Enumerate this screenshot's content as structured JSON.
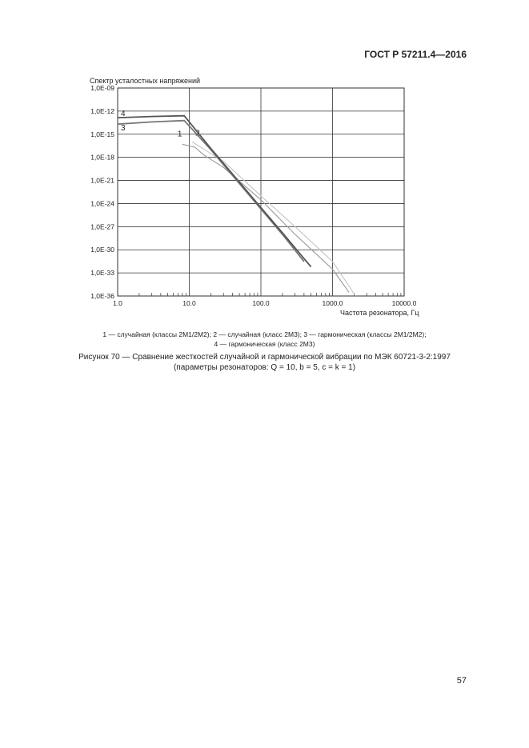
{
  "header": {
    "title": "ГОСТ Р 57211.4—2016"
  },
  "chart_data": {
    "type": "line",
    "y_label": "Спектр усталостных напряжений",
    "x_label": "Частота резонатора, Гц",
    "log_x": true,
    "log_y": true,
    "grid": true,
    "xlim": [
      1,
      10000
    ],
    "xticks": [
      {
        "value": 1,
        "label": "1.0"
      },
      {
        "value": 10,
        "label": "10.0"
      },
      {
        "value": 100,
        "label": "100.0"
      },
      {
        "value": 1000,
        "label": "1000.0"
      },
      {
        "value": 10000,
        "label": "10000.0"
      }
    ],
    "ylim": [
      1e-36,
      1e-09
    ],
    "yticks": [
      {
        "value": 1e-09,
        "label": "1,0E-09"
      },
      {
        "value": 1e-12,
        "label": "1,0E-12"
      },
      {
        "value": 1e-15,
        "label": "1,0E-15"
      },
      {
        "value": 1e-18,
        "label": "1,0E-18"
      },
      {
        "value": 1e-21,
        "label": "1,0E-21"
      },
      {
        "value": 1e-24,
        "label": "1,0E-24"
      },
      {
        "value": 1e-27,
        "label": "1,0E-27"
      },
      {
        "value": 1e-30,
        "label": "1,0E-30"
      },
      {
        "value": 1e-33,
        "label": "1,0E-33"
      },
      {
        "value": 1e-36,
        "label": "1,0E-36"
      }
    ],
    "series": [
      {
        "name": "1",
        "color": "#999999",
        "x": [
          8,
          12,
          16,
          30,
          100,
          300,
          1000,
          1700
        ],
        "values": [
          5e-17,
          2e-17,
          2e-18,
          5e-20,
          3e-24,
          1e-28,
          3e-33,
          3e-36
        ]
      },
      {
        "name": "2",
        "color": "#c4c4c4",
        "x": [
          11,
          30,
          100,
          300,
          1000,
          2100
        ],
        "values": [
          1e-16,
          3e-19,
          1e-23,
          1e-27,
          3e-32,
          1e-36
        ]
      },
      {
        "name": "3",
        "color": "#777777",
        "x": [
          1,
          3,
          8.5,
          20,
          50,
          100,
          200,
          400
        ],
        "values": [
          2e-14,
          4e-14,
          6e-14,
          1e-17,
          4e-22,
          2e-25,
          1e-28,
          3e-32
        ]
      },
      {
        "name": "4",
        "color": "#555555",
        "x": [
          1,
          3,
          8.5,
          20,
          50,
          100,
          200,
          500
        ],
        "values": [
          1.4e-13,
          2e-13,
          2.5e-13,
          1.4e-17,
          6e-22,
          3e-25,
          1.6e-28,
          6e-33
        ]
      }
    ]
  },
  "legend_text": [
    "1 — случайная (классы 2М1/2М2); 2 — случайная (класс 2М3); 3 — гармоническая (классы 2М1/2М2);",
    "4 — гармоническая (класс 2М3)"
  ],
  "caption": [
    "Рисунок 70 — Сравнение жесткостей случайной и гармонической вибрации по МЭК 60721-3-2:1997",
    "(параметры резонаторов: Q = 10, b = 5, c = k = 1)"
  ],
  "page_number": "57"
}
